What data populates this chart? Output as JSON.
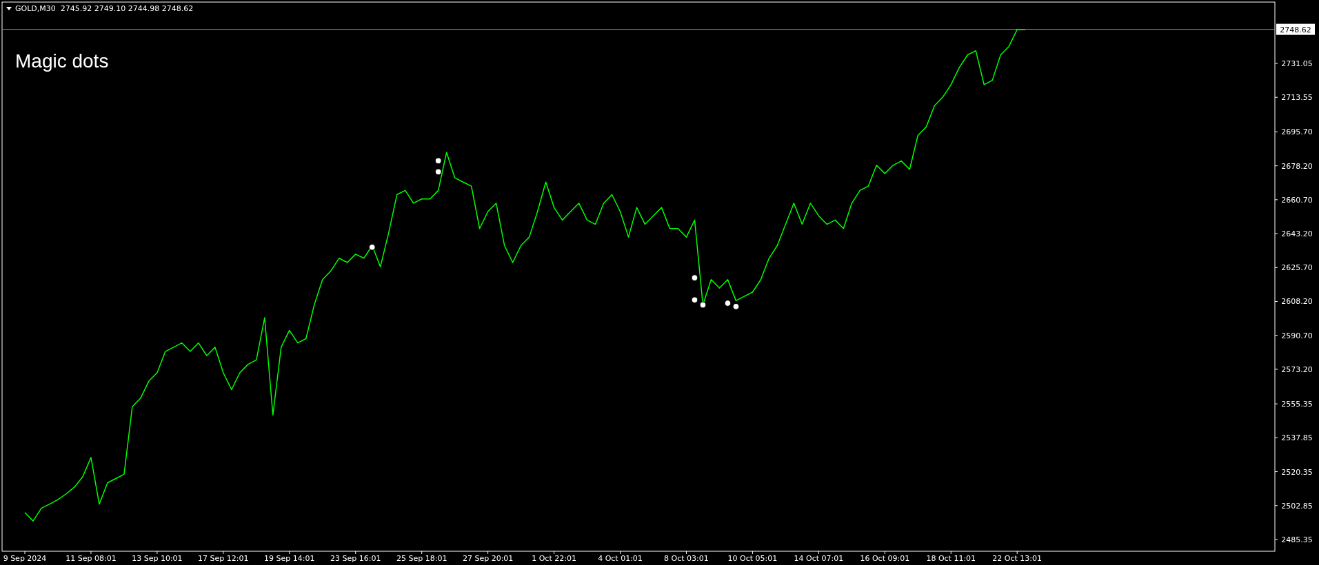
{
  "chart_data": {
    "type": "line",
    "title": "GOLD,M30  2745.92 2749.10 2744.98 2748.62",
    "subtitle": "Magic dots",
    "categories": [
      "9 Sep 2024",
      null,
      null,
      null,
      null,
      null,
      null,
      null,
      "11 Sep 08:01",
      null,
      null,
      null,
      null,
      null,
      null,
      null,
      "13 Sep 10:01",
      null,
      null,
      null,
      null,
      null,
      null,
      null,
      "17 Sep 12:01",
      null,
      null,
      null,
      null,
      null,
      null,
      null,
      "19 Sep 14:01",
      null,
      null,
      null,
      null,
      null,
      null,
      null,
      "23 Sep 16:01",
      null,
      null,
      null,
      null,
      null,
      null,
      null,
      "25 Sep 18:01",
      null,
      null,
      null,
      null,
      null,
      null,
      null,
      "27 Sep 20:01",
      null,
      null,
      null,
      null,
      null,
      null,
      null,
      "1 Oct 22:01",
      null,
      null,
      null,
      null,
      null,
      null,
      null,
      "4 Oct 01:01",
      null,
      null,
      null,
      null,
      null,
      null,
      null,
      "8 Oct 03:01",
      null,
      null,
      null,
      null,
      null,
      null,
      null,
      "10 Oct 05:01",
      null,
      null,
      null,
      null,
      null,
      null,
      null,
      "14 Oct 07:01",
      null,
      null,
      null,
      null,
      null,
      null,
      null,
      "16 Oct 09:01",
      null,
      null,
      null,
      null,
      null,
      null,
      null,
      "18 Oct 11:01",
      null,
      null,
      null,
      null,
      null,
      null,
      null,
      "22 Oct 13:01",
      null,
      null,
      null,
      null,
      null,
      null,
      null,
      null,
      null,
      null,
      null,
      null,
      null,
      null,
      null,
      null,
      null,
      null,
      null,
      null,
      null,
      null,
      null,
      null,
      null,
      null,
      null,
      null,
      null,
      null,
      null
    ],
    "ylim": [
      2479.3,
      2762.7
    ],
    "yticks": [
      2485.35,
      2502.85,
      2520.35,
      2537.85,
      2555.35,
      {
        "value": 2573.2,
        "label": "2573.20"
      },
      {
        "value": 2590.7,
        "label": "2590.70"
      },
      {
        "value": 2608.2,
        "label": "2608.20"
      },
      {
        "value": 2625.7,
        "label": "2625.70"
      },
      {
        "value": 2643.2,
        "label": "2643.20"
      },
      {
        "value": 2660.7,
        "label": "2660.70"
      },
      {
        "value": 2678.2,
        "label": "2678.20"
      },
      {
        "value": 2695.7,
        "label": "2695.70"
      },
      2713.55,
      2731.05
    ],
    "grid": false,
    "ref_lines": [
      {
        "axis": "y",
        "value": 2748.62,
        "label": "2748.62",
        "color": "#778899"
      }
    ],
    "series": [
      {
        "color": "#00ff00",
        "values": [
          2499.3,
          2494.9,
          2501.5,
          2503.6,
          2505.9,
          2508.9,
          2512.4,
          2517.7,
          2527.7,
          2503.6,
          2514.6,
          2516.8,
          2519.0,
          2553.9,
          2558.3,
          2567.1,
          2571.4,
          2582.4,
          2584.6,
          2586.8,
          2582.4,
          2586.8,
          2580.2,
          2584.6,
          2571.4,
          2562.7,
          2571.4,
          2575.8,
          2578.0,
          2599.8,
          2549.6,
          2584.6,
          2593.3,
          2586.8,
          2589.0,
          2606.4,
          2619.5,
          2623.9,
          2630.5,
          2628.3,
          2632.6,
          2630.5,
          2637.1,
          2626.1,
          2643.6,
          2663.3,
          2665.5,
          2658.9,
          2661.1,
          2661.1,
          2665.5,
          2685.1,
          2672.0,
          2669.8,
          2667.7,
          2645.8,
          2654.6,
          2658.9,
          2637.1,
          2628.3,
          2637.1,
          2641.4,
          2654.6,
          2669.8,
          2656.7,
          2650.2,
          2654.6,
          2658.9,
          2650.2,
          2648.0,
          2658.9,
          2663.3,
          2654.6,
          2641.4,
          2656.7,
          2648.0,
          2652.4,
          2656.7,
          2645.8,
          2645.8,
          2641.4,
          2650.2,
          2606.4,
          2619.5,
          2615.1,
          2619.5,
          2608.6,
          2610.8,
          2613.0,
          2619.5,
          2630.5,
          2637.1,
          2648.0,
          2658.9,
          2648.0,
          2658.9,
          2652.4,
          2648.0,
          2650.2,
          2645.8,
          2658.9,
          2665.5,
          2667.7,
          2678.5,
          2674.2,
          2678.5,
          2680.7,
          2676.4,
          2693.9,
          2698.2,
          2709.2,
          2713.6,
          2720.1,
          2728.9,
          2735.4,
          2737.6,
          2720.1,
          2722.3,
          2735.4,
          2739.8,
          2748.5,
          2748.6,
          null,
          null,
          null,
          null,
          null,
          null,
          null,
          null,
          null,
          null,
          null,
          null,
          null,
          null,
          null,
          null,
          null,
          null,
          null,
          null,
          null,
          null,
          null,
          null,
          null,
          null,
          null,
          null,
          null,
          null
        ]
      },
      {
        "type": "scatter",
        "color": "#ffffff",
        "marker": "circle",
        "values": [
          null,
          null,
          null,
          null,
          null,
          null,
          null,
          null,
          null,
          null,
          null,
          null,
          null,
          null,
          null,
          null,
          null,
          null,
          null,
          null,
          null,
          null,
          null,
          null,
          null,
          null,
          null,
          null,
          null,
          null,
          null,
          null,
          null,
          null,
          null,
          null,
          null,
          null,
          null,
          null,
          null,
          null,
          2636.2,
          null,
          null,
          null,
          null,
          null,
          null,
          null,
          2680.8,
          null,
          null,
          null,
          null,
          null,
          null,
          null,
          null,
          null,
          null,
          null,
          null,
          null,
          null,
          null,
          null,
          null,
          null,
          null,
          null,
          null,
          null,
          null,
          null,
          null,
          null,
          null,
          null,
          null,
          null,
          2620.4,
          null,
          null,
          null,
          2607.3,
          null,
          null,
          null,
          null,
          null,
          null,
          null,
          null,
          null,
          null,
          null,
          null,
          null,
          null,
          null,
          null,
          null,
          null,
          null,
          null,
          null,
          null,
          null,
          null,
          null,
          null,
          null,
          null,
          null,
          null,
          null,
          null,
          null,
          null,
          null,
          null,
          null,
          null,
          null,
          null,
          null,
          null,
          null,
          null,
          null,
          null,
          null,
          null,
          null,
          null,
          null,
          null,
          null,
          null,
          null,
          null,
          null,
          null,
          null,
          null,
          null,
          null,
          null,
          null,
          null,
          null
        ]
      },
      {
        "type": "scatter",
        "color": "#ffffff",
        "marker": "circle",
        "values": [
          null,
          null,
          null,
          null,
          null,
          null,
          null,
          null,
          null,
          null,
          null,
          null,
          null,
          null,
          null,
          null,
          null,
          null,
          null,
          null,
          null,
          null,
          null,
          null,
          null,
          null,
          null,
          null,
          null,
          null,
          null,
          null,
          null,
          null,
          null,
          null,
          null,
          null,
          null,
          null,
          null,
          null,
          null,
          null,
          null,
          null,
          null,
          null,
          null,
          null,
          2675.1,
          null,
          null,
          null,
          null,
          null,
          null,
          null,
          null,
          null,
          null,
          null,
          null,
          null,
          null,
          null,
          null,
          null,
          null,
          null,
          null,
          null,
          null,
          null,
          null,
          null,
          null,
          null,
          null,
          null,
          null,
          2609.0,
          2606.4,
          null,
          null,
          null,
          2605.6,
          null,
          null,
          null,
          null,
          null,
          null,
          null,
          null,
          null,
          null,
          null,
          null,
          null,
          null,
          null,
          null,
          null,
          null,
          null,
          null,
          null,
          null,
          null,
          null,
          null,
          null,
          null,
          null,
          null,
          null,
          null,
          null,
          null,
          null,
          null,
          null,
          null,
          null,
          null,
          null,
          null,
          null,
          null,
          null,
          null,
          null,
          null,
          null,
          null,
          null,
          null,
          null,
          null,
          null,
          null,
          null,
          null,
          null,
          null,
          null,
          null,
          null,
          null,
          null,
          null
        ]
      }
    ]
  }
}
